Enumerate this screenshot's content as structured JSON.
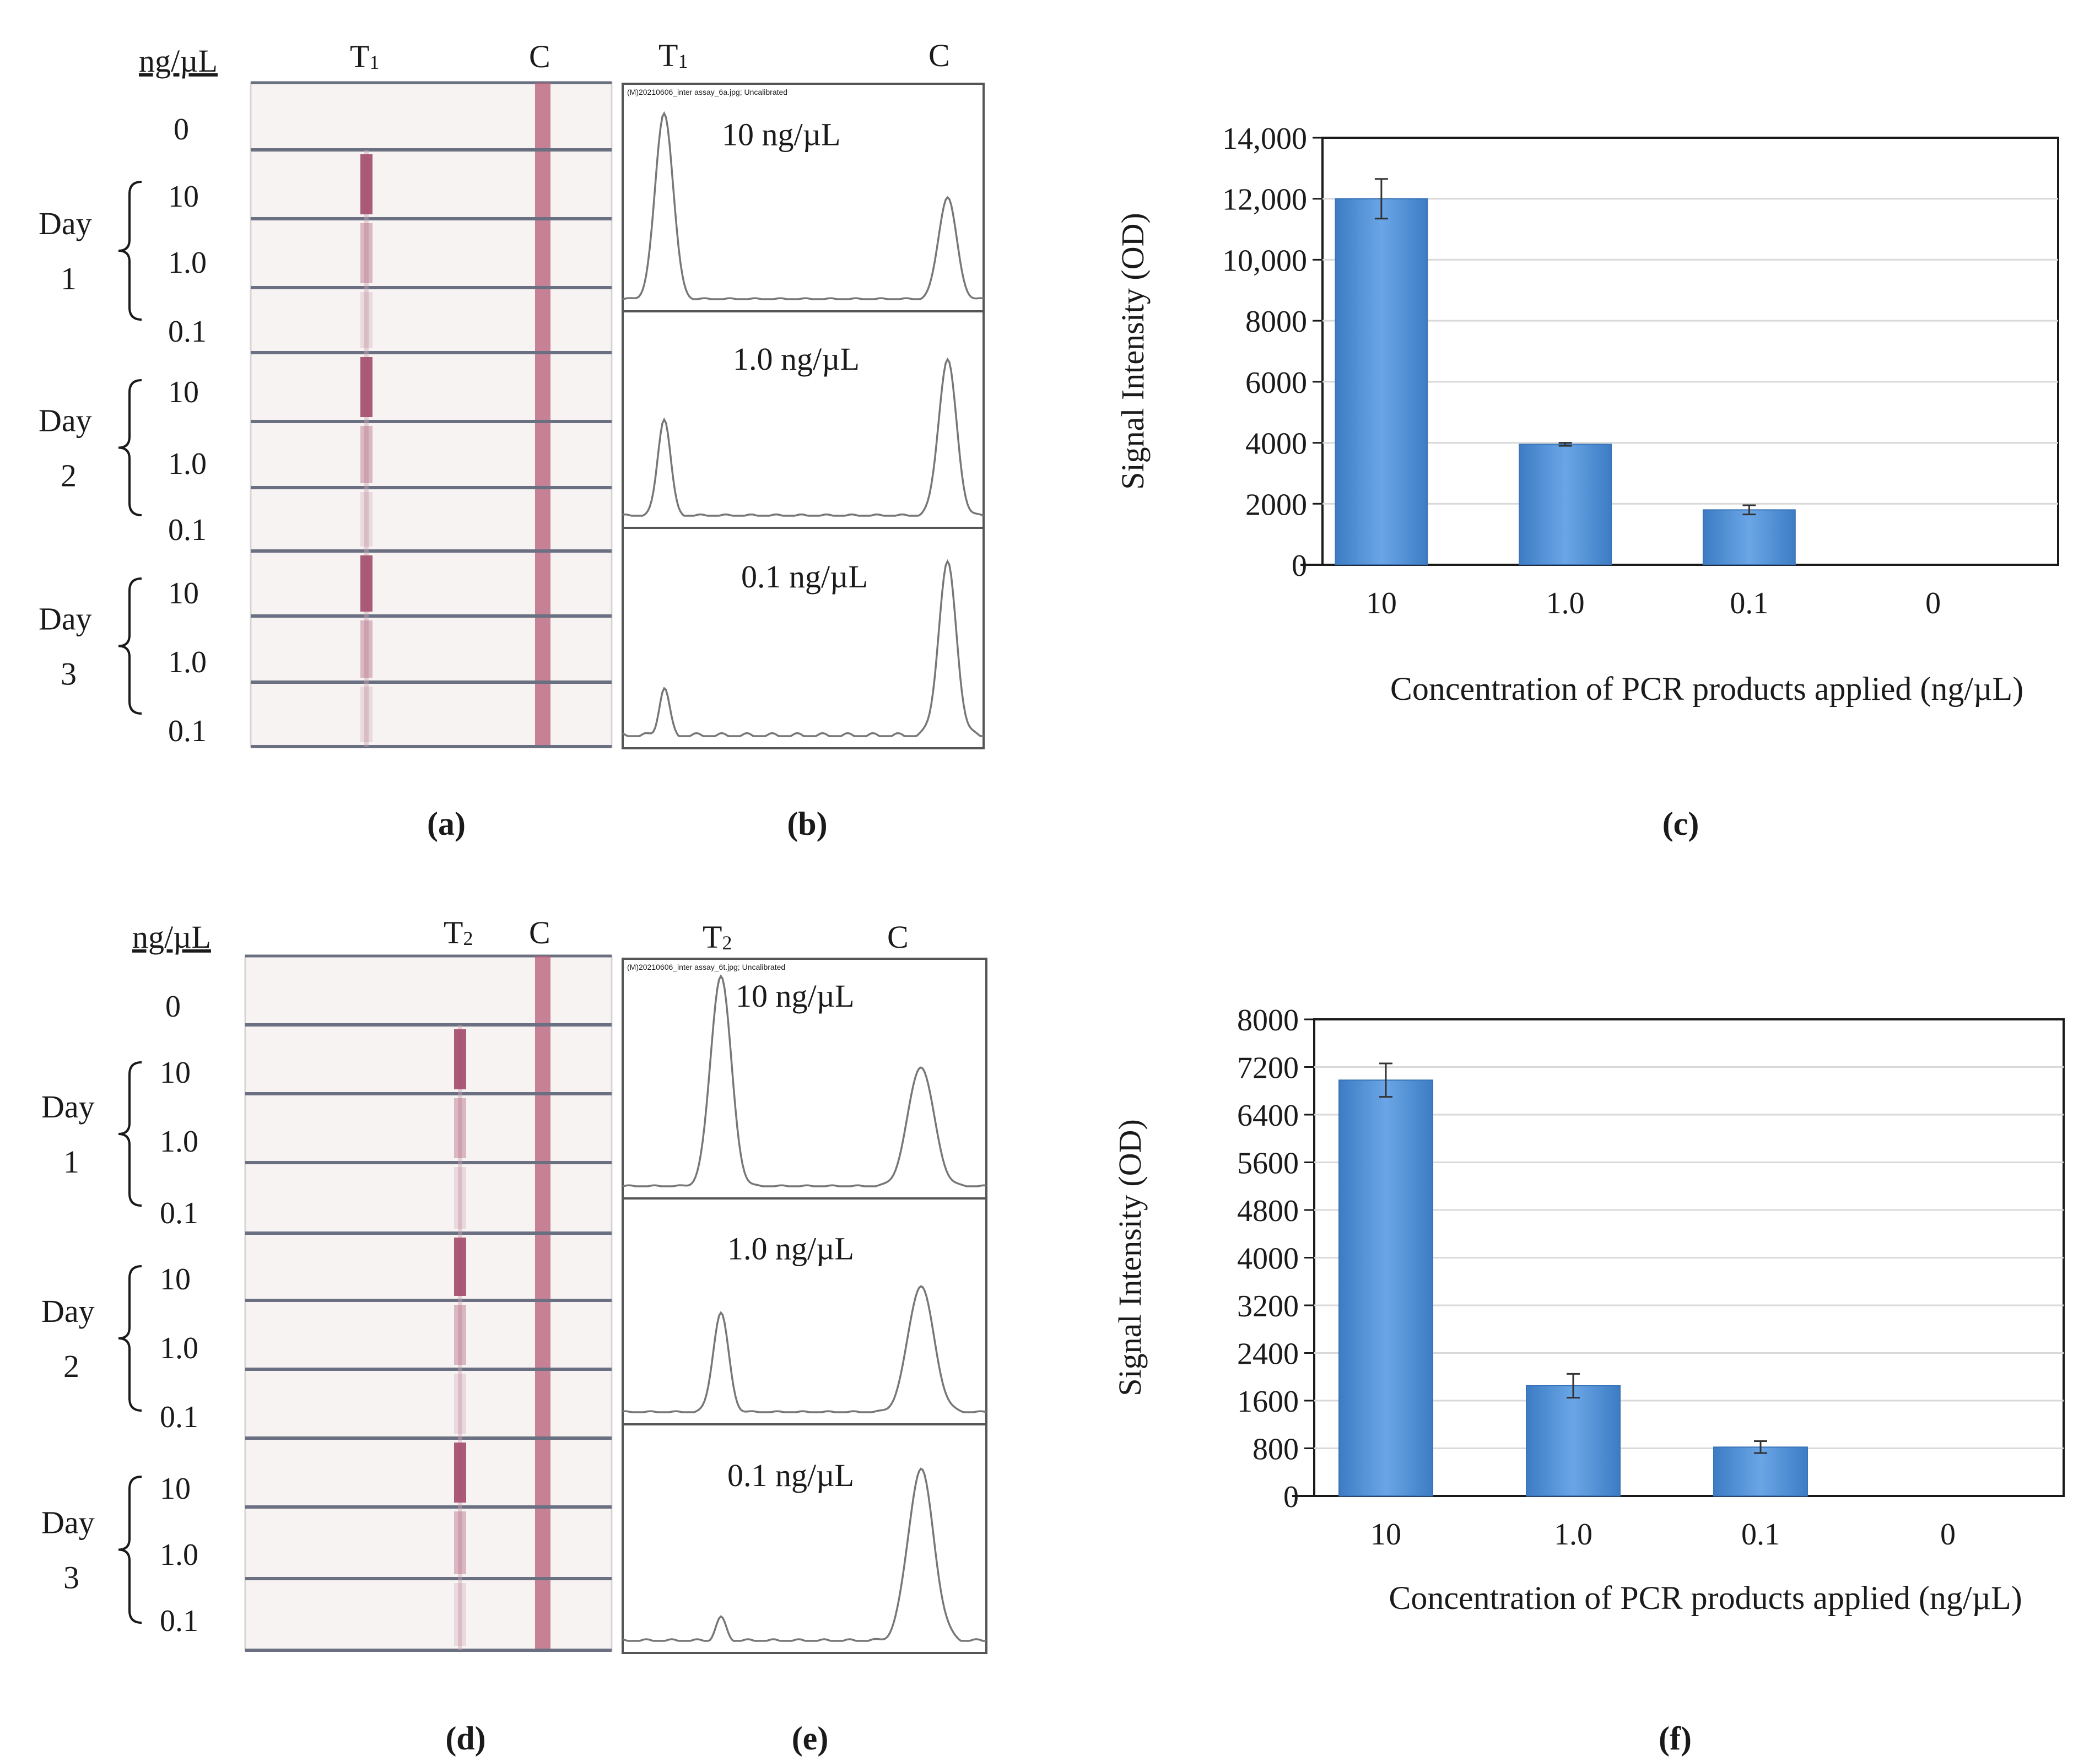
{
  "figure": {
    "top": {
      "unit_header": "ng/µL",
      "strip_labels": {
        "test": "T1",
        "control": "C"
      },
      "zero_label": "0",
      "days": [
        {
          "label_line1": "Day",
          "label_line2": "1",
          "concentrations": [
            "10",
            "1.0",
            "0.1"
          ]
        },
        {
          "label_line1": "Day",
          "label_line2": "2",
          "concentrations": [
            "10",
            "1.0",
            "0.1"
          ]
        },
        {
          "label_line1": "Day",
          "label_line2": "3",
          "concentrations": [
            "10",
            "1.0",
            "0.1"
          ]
        }
      ],
      "scan_header": "(M)20210606_inter assay_6a.jpg; Uncalibrated",
      "trace_labels": [
        "10 ng/µL",
        "1.0 ng/µL",
        "0.1 ng/µL"
      ],
      "panel_labels": {
        "strip": "(a)",
        "scan": "(b)",
        "chart": "(c)"
      }
    },
    "bottom": {
      "unit_header": "ng/µL",
      "strip_labels": {
        "test": "T2",
        "control": "C"
      },
      "zero_label": "0",
      "days": [
        {
          "label_line1": "Day",
          "label_line2": "1",
          "concentrations": [
            "10",
            "1.0",
            "0.1"
          ]
        },
        {
          "label_line1": "Day",
          "label_line2": "2",
          "concentrations": [
            "10",
            "1.0",
            "0.1"
          ]
        },
        {
          "label_line1": "Day",
          "label_line2": "3",
          "concentrations": [
            "10",
            "1.0",
            "0.1"
          ]
        }
      ],
      "scan_header": "(M)20210606_inter assay_6t.jpg; Uncalibrated",
      "trace_labels": [
        "10 ng/µL",
        "1.0 ng/µL",
        "0.1 ng/µL"
      ],
      "panel_labels": {
        "strip": "(d)",
        "scan": "(e)",
        "chart": "(f)"
      }
    }
  },
  "chart_data": [
    {
      "type": "bar",
      "panel": "(c)",
      "categories": [
        "10",
        "1.0",
        "0.1",
        "0"
      ],
      "values": [
        12000,
        3950,
        1800,
        0
      ],
      "errors": [
        650,
        50,
        150,
        0
      ],
      "ylim": [
        0,
        14000
      ],
      "yticks": [
        0,
        2000,
        4000,
        6000,
        8000,
        10000,
        12000,
        14000
      ],
      "ytick_labels": [
        "0",
        "2000",
        "4000",
        "6000",
        "8000",
        "10,000",
        "12,000",
        "14,000"
      ],
      "xlabel": "Concentration of PCR products applied (ng/µL)",
      "ylabel": "Signal Intensity (OD)",
      "bar_color": "#4f8fd3",
      "grid": true
    },
    {
      "type": "bar",
      "panel": "(f)",
      "categories": [
        "10",
        "1.0",
        "0.1",
        "0"
      ],
      "values": [
        6980,
        1850,
        820,
        0
      ],
      "errors": [
        280,
        200,
        100,
        0
      ],
      "ylim": [
        0,
        8000
      ],
      "yticks": [
        0,
        800,
        1600,
        2400,
        3200,
        4000,
        4800,
        5600,
        6400,
        7200,
        8000
      ],
      "ytick_labels": [
        "0",
        "800",
        "1600",
        "2400",
        "3200",
        "4000",
        "4800",
        "5600",
        "6400",
        "7200",
        "8000"
      ],
      "xlabel": "Concentration of PCR products applied (ng/µL)",
      "ylabel": "Signal Intensity (OD)",
      "bar_color": "#4f8fd3",
      "grid": true
    }
  ]
}
